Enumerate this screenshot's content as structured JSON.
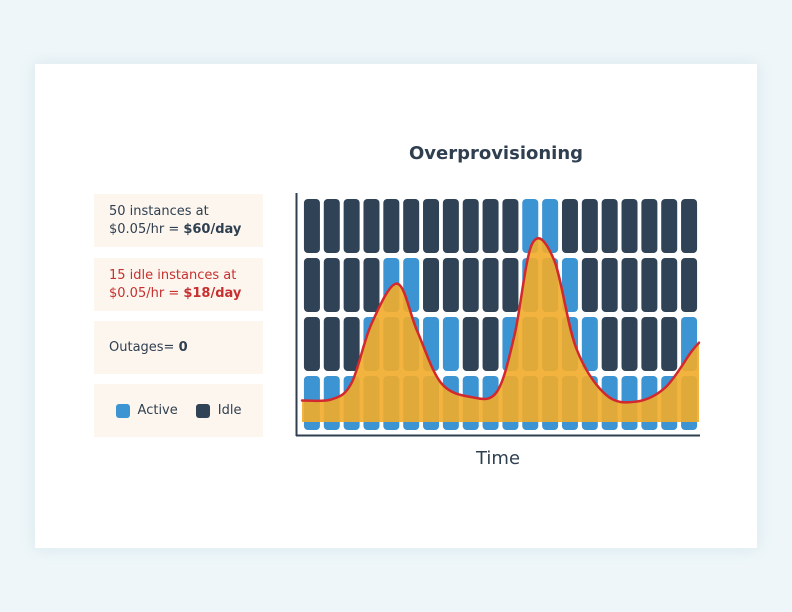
{
  "chart_data": {
    "type": "area",
    "title": "Overprovisioning",
    "xlabel": "Time",
    "ylabel": "",
    "columns": 20,
    "rows": 4,
    "active_levels": [
      1,
      1,
      1,
      2,
      3,
      3,
      2,
      2,
      1,
      1,
      2,
      4,
      4,
      3,
      2,
      1,
      1,
      1,
      1,
      2
    ],
    "demand_curve": [
      [
        0,
        0.125
      ],
      [
        1.5,
        0.13
      ],
      [
        2.5,
        0.2
      ],
      [
        3.5,
        0.45
      ],
      [
        4.8,
        0.62
      ],
      [
        5.8,
        0.42
      ],
      [
        7.0,
        0.2
      ],
      [
        8.5,
        0.14
      ],
      [
        9.8,
        0.16
      ],
      [
        10.7,
        0.4
      ],
      [
        11.6,
        0.79
      ],
      [
        12.7,
        0.72
      ],
      [
        13.8,
        0.35
      ],
      [
        15.3,
        0.15
      ],
      [
        16.8,
        0.12
      ],
      [
        18.3,
        0.18
      ],
      [
        19.6,
        0.33
      ],
      [
        20,
        0.37
      ]
    ],
    "ylim": [
      0,
      1
    ]
  },
  "info": {
    "box1": {
      "line1": "50 instances at",
      "line2_prefix": "$0.05/hr = ",
      "line2_bold": "$60/day"
    },
    "box2": {
      "line1": "15 idle instances at",
      "line2_prefix": "$0.05/hr = ",
      "line2_bold": "$18/day"
    },
    "box3": {
      "prefix": "Outages= ",
      "bold": "0"
    }
  },
  "legend": [
    {
      "label": "Active",
      "color": "#3d94d3"
    },
    {
      "label": "Idle",
      "color": "#2f4256"
    }
  ],
  "colors": {
    "idle": "#2f4256",
    "active": "#3d94d3",
    "fill": "#f2ac2a",
    "curve": "#d2282e",
    "axis": "#2f3f50"
  }
}
